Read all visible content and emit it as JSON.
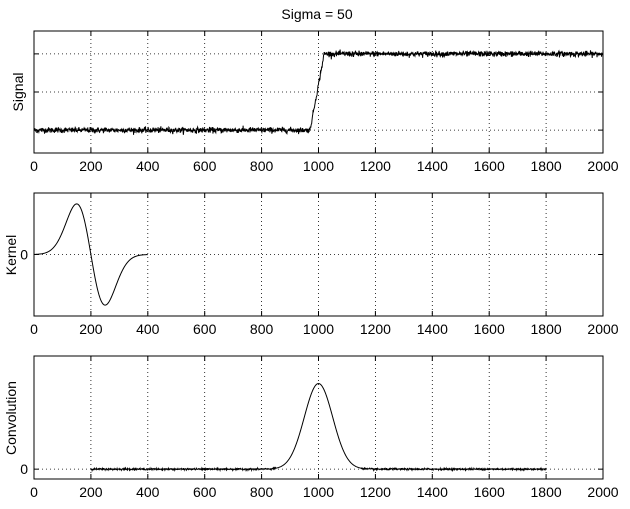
{
  "chart_data": [
    {
      "type": "line",
      "title": "Sigma = 50",
      "xlabel": "",
      "ylabel": "Signal",
      "xlim": [
        0,
        2000
      ],
      "ylim": [
        -0.3,
        1.3
      ],
      "xticks": [
        0,
        200,
        400,
        600,
        800,
        1000,
        1200,
        1400,
        1600,
        1800,
        2000
      ],
      "yticks": [
        0,
        0.5,
        1
      ],
      "ytick_labels_shown": false,
      "grid": true,
      "line_color": "#000000",
      "series": [
        {
          "x": [
            0,
            970,
            1020,
            2000
          ],
          "y": [
            0.0,
            0.0,
            1.0,
            1.0
          ],
          "noise_std": 0.018
        }
      ]
    },
    {
      "type": "line",
      "title": "",
      "xlabel": "",
      "ylabel": "Kernel",
      "xlim": [
        0,
        2000
      ],
      "ylim": [
        -0.0147,
        0.0147
      ],
      "xticks": [
        0,
        200,
        400,
        600,
        800,
        1000,
        1200,
        1400,
        1600,
        1800,
        2000
      ],
      "yticks": [
        0
      ],
      "ytick_labels": [
        "0"
      ],
      "grid": true,
      "line_color": "#000000",
      "series": [
        {
          "kind": "gaussian_derivative",
          "sigma": 50,
          "center": 200,
          "x_range": [
            0,
            400
          ],
          "peak": 0.0121
        }
      ]
    },
    {
      "type": "line",
      "title": "",
      "xlabel": "",
      "ylabel": "Convolution",
      "xlim": [
        0,
        2000
      ],
      "ylim": [
        -0.1,
        1.15
      ],
      "xticks": [
        0,
        200,
        400,
        600,
        800,
        1000,
        1200,
        1400,
        1600,
        1800,
        2000
      ],
      "yticks": [
        0
      ],
      "ytick_labels": [
        "0"
      ],
      "grid": true,
      "line_color": "#000000",
      "series": [
        {
          "kind": "gaussian",
          "sigma": 50,
          "center": 1000,
          "peak": 0.87,
          "x_range": [
            200,
            1800
          ],
          "noise_std": 0.004
        }
      ]
    }
  ]
}
